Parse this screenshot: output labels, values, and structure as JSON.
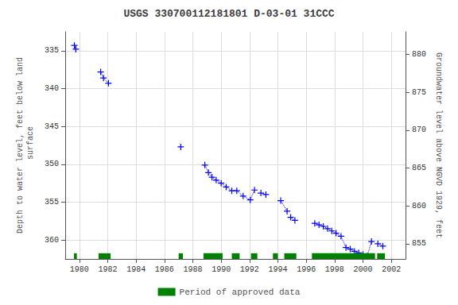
{
  "chart_data": {
    "type": "line",
    "title": "USGS 330700112181801 D-03-01 31CCC",
    "ylabel": "Depth to water level, feet below land\n surface",
    "y2label": "Groundwater level above NGVD 1929, feet",
    "xlim": [
      1979.0,
      2003.0
    ],
    "xticks": [
      1980,
      1982,
      1984,
      1986,
      1988,
      1990,
      1992,
      1994,
      1996,
      1998,
      2000,
      2002
    ],
    "ylim": [
      362.5,
      332.5
    ],
    "yticks": [
      335,
      340,
      345,
      350,
      355,
      360
    ],
    "y2lim": [
      853.0,
      883.0
    ],
    "y2ticks": [
      855,
      860,
      865,
      870,
      875,
      880
    ],
    "grid": true,
    "color": "#0000ff",
    "marker": "plus",
    "line_style": "dotted",
    "series": [
      {
        "x": [
          1979.65,
          1979.75
        ],
        "values": [
          334.3,
          334.8
        ]
      },
      {
        "x": [
          1981.5,
          1981.7,
          1982.05
        ],
        "values": [
          337.8,
          338.6,
          339.3
        ]
      },
      {
        "x": [
          1987.15
        ],
        "values": [
          347.7
        ]
      },
      {
        "x": [
          1988.85,
          1989.1,
          1989.35,
          1989.65,
          1990.0,
          1990.35,
          1990.75,
          1991.1,
          1991.55,
          1992.05,
          1992.35
        ],
        "values": [
          350.1,
          351.1,
          351.7,
          352.1,
          352.5,
          353.0,
          353.5,
          353.5,
          354.2,
          354.7,
          353.4
        ]
      },
      {
        "x": [
          1992.8,
          1993.15
        ],
        "values": [
          353.8,
          354.0
        ]
      },
      {
        "x": [
          1994.2,
          1994.65
        ],
        "values": [
          354.8,
          356.2
        ]
      },
      {
        "x": [
          1994.9,
          1995.2
        ],
        "values": [
          357.0,
          357.4
        ]
      },
      {
        "x": [
          1996.6,
          1996.9,
          1997.2,
          1997.5,
          1997.8,
          1998.1,
          1998.45,
          1998.8,
          1999.1,
          1999.4,
          1999.7,
          2000.0,
          2000.3,
          2000.6
        ],
        "values": [
          357.8,
          358.0,
          358.2,
          358.5,
          358.8,
          359.1,
          359.5,
          361.0,
          361.2,
          361.5,
          361.7,
          361.9,
          362.1,
          360.2
        ]
      },
      {
        "x": [
          2001.05,
          2001.4
        ],
        "values": [
          360.5,
          360.8
        ]
      }
    ],
    "approved_periods": {
      "name": "Period of approved data",
      "color": "#008000",
      "ranges": [
        [
          1979.62,
          1979.82
        ],
        [
          1981.35,
          1982.2
        ],
        [
          1987.0,
          1987.3
        ],
        [
          1988.75,
          1990.1
        ],
        [
          1990.75,
          1991.3
        ],
        [
          1992.1,
          1992.55
        ],
        [
          1993.65,
          1994.0
        ],
        [
          1994.45,
          1995.3
        ],
        [
          1996.4,
          2000.85
        ],
        [
          2001.0,
          2001.55
        ]
      ]
    },
    "legend": "bottom"
  }
}
